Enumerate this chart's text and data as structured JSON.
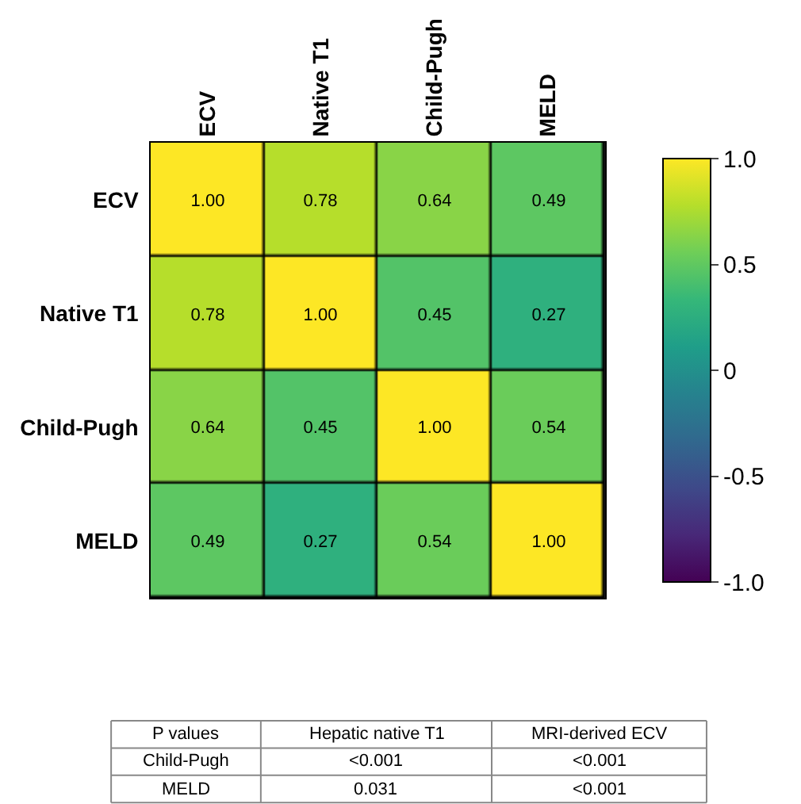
{
  "chart_data": {
    "type": "heatmap",
    "categories": [
      "ECV",
      "Native T1",
      "Child-Pugh",
      "MELD"
    ],
    "y_categories": [
      "ECV",
      "Native T1",
      "Child-Pugh",
      "MELD"
    ],
    "cells": [
      [
        1.0,
        0.78,
        0.64,
        0.49
      ],
      [
        0.78,
        1.0,
        0.45,
        0.27
      ],
      [
        0.64,
        0.45,
        1.0,
        0.54
      ],
      [
        0.49,
        0.27,
        0.54,
        1.0
      ]
    ],
    "cell_labels": [
      [
        "1.00",
        "0.78",
        "0.64",
        "0.49"
      ],
      [
        "0.78",
        "1.00",
        "0.45",
        "0.27"
      ],
      [
        "0.64",
        "0.45",
        "1.00",
        "0.54"
      ],
      [
        "0.49",
        "0.27",
        "0.54",
        "1.00"
      ]
    ],
    "clim": [
      -1,
      1
    ],
    "cticks": [
      {
        "value": -1,
        "label": "-1.0"
      },
      {
        "value": -0.5,
        "label": "-0.5"
      },
      {
        "value": 0,
        "label": "0"
      },
      {
        "value": 0.5,
        "label": "0.5"
      },
      {
        "value": 1,
        "label": "1.0"
      }
    ],
    "annotations": [
      "P values",
      "Hepatic native T1",
      "MRI-derived ECV",
      "Child-Pugh",
      "<0.001",
      "<0.001",
      "MELD",
      "0.031",
      "<0.001"
    ]
  }
}
